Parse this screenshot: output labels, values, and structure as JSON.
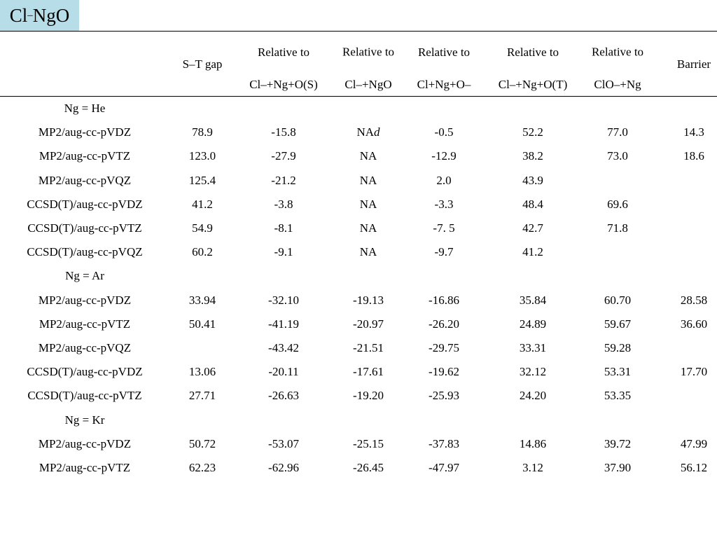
{
  "title": {
    "main": "Cl",
    "sup": "–",
    "rest": "NgO"
  },
  "header": {
    "line1": [
      "Relative to",
      "Relative to",
      "Relative to",
      "Relative to",
      "Relative to"
    ],
    "line2": [
      "Cl–+Ng+O(S)",
      "Cl–+NgO",
      "Cl+Ng+O–",
      "Cl–+Ng+O(T)",
      "ClO–+Ng"
    ],
    "st_gap": "S–T gap",
    "barrier": "Barrier"
  },
  "sections": [
    {
      "label": "Ng = He",
      "rows": [
        {
          "method": "MP2/aug-cc-pVDZ",
          "cells": [
            "78.9",
            "-15.8",
            "NA",
            "-0.5",
            "52.2",
            "77.0",
            "14.3"
          ],
          "na_sup": "d"
        },
        {
          "method": "MP2/aug-cc-pVTZ",
          "cells": [
            "123.0",
            "-27.9",
            "NA",
            "-12.9",
            "38.2",
            "73.0",
            "18.6"
          ]
        },
        {
          "method": "MP2/aug-cc-pVQZ",
          "cells": [
            "125.4",
            "-21.2",
            "NA",
            "2.0",
            "43.9",
            "",
            ""
          ]
        },
        {
          "method": "CCSD(T)/aug-cc-pVDZ",
          "cells": [
            "41.2",
            "-3.8",
            "NA",
            "-3.3",
            "48.4",
            "69.6",
            ""
          ]
        },
        {
          "method": "CCSD(T)/aug-cc-pVTZ",
          "cells": [
            "54.9",
            "-8.1",
            "NA",
            "-7. 5",
            "42.7",
            "71.8",
            ""
          ]
        },
        {
          "method": "CCSD(T)/aug-cc-pVQZ",
          "cells": [
            "60.2",
            "-9.1",
            "NA",
            "-9.7",
            "41.2",
            "",
            ""
          ]
        }
      ]
    },
    {
      "label": "Ng = Ar",
      "rows": [
        {
          "method": "MP2/aug-cc-pVDZ",
          "cells": [
            "33.94",
            "-32.10",
            "-19.13",
            "-16.86",
            "35.84",
            "60.70",
            "28.58"
          ]
        },
        {
          "method": "MP2/aug-cc-pVTZ",
          "cells": [
            "50.41",
            "-41.19",
            "-20.97",
            "-26.20",
            "24.89",
            "59.67",
            "36.60"
          ]
        },
        {
          "method": "MP2/aug-cc-pVQZ",
          "cells": [
            "",
            "-43.42",
            "-21.51",
            "-29.75",
            "33.31",
            "59.28",
            ""
          ]
        },
        {
          "method": "CCSD(T)/aug-cc-pVDZ",
          "cells": [
            "13.06",
            "-20.11",
            "-17.61",
            "-19.62",
            "32.12",
            "53.31",
            "17.70"
          ]
        },
        {
          "method": "CCSD(T)/aug-cc-pVTZ",
          "cells": [
            "27.71",
            "-26.63",
            "-19.20",
            "-25.93",
            "24.20",
            "53.35",
            ""
          ]
        }
      ]
    },
    {
      "label": "Ng = Kr",
      "rows": [
        {
          "method": "MP2/aug-cc-pVDZ",
          "cells": [
            "50.72",
            "-53.07",
            "-25.15",
            "-37.83",
            "14.86",
            "39.72",
            "47.99"
          ]
        },
        {
          "method": "MP2/aug-cc-pVTZ",
          "cells": [
            "62.23",
            "-62.96",
            "-26.45",
            "-47.97",
            "3.12",
            "37.90",
            "56.12"
          ]
        }
      ]
    }
  ]
}
